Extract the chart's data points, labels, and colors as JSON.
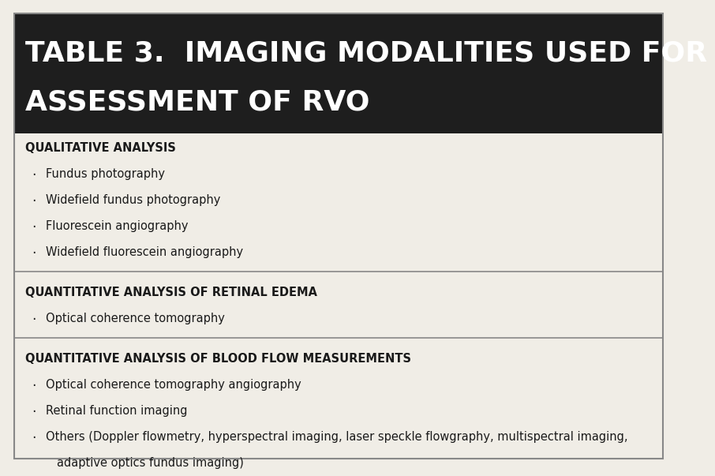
{
  "title_line1": "TABLE 3.  IMAGING MODALITIES USED FOR",
  "title_line2": "ASSESSMENT OF RVO",
  "header_bg": "#1e1e1e",
  "header_text_color": "#ffffff",
  "body_bg": "#f0ede6",
  "body_text_color": "#1a1a1a",
  "border_color": "#888888",
  "sections": [
    {
      "heading": "QUALITATIVE ANALYSIS",
      "items": [
        "Fundus photography",
        "Widefield fundus photography",
        "Fluorescein angiography",
        "Widefield fluorescein angiography"
      ]
    },
    {
      "heading": "QUANTITATIVE ANALYSIS OF RETINAL EDEMA",
      "items": [
        "Optical coherence tomography"
      ]
    },
    {
      "heading": "QUANTITATIVE ANALYSIS OF BLOOD FLOW MEASUREMENTS",
      "items": [
        "Optical coherence tomography angiography",
        "Retinal function imaging",
        "Others (Doppler flowmetry, hyperspectral imaging, laser speckle flowgraphy, multispectral imaging,",
        "    adaptive optics fundus imaging)"
      ]
    }
  ],
  "title_fontsize": 26,
  "heading_fontsize": 10.5,
  "item_fontsize": 10.5,
  "bullet": "·"
}
